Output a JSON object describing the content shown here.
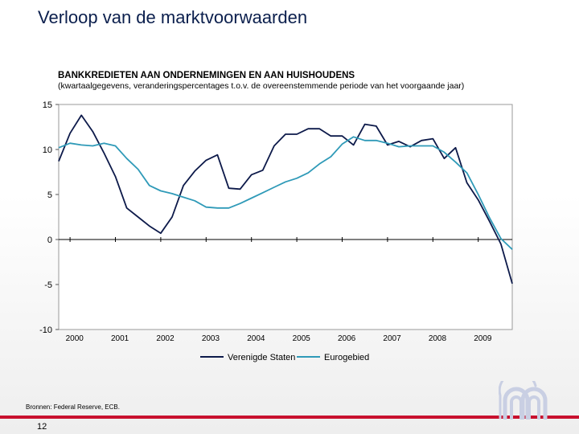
{
  "slide": {
    "title": "Verloop van de marktvoorwaarden",
    "source": "Bronnen: Federal Reserve, ECB.",
    "page_number": "12"
  },
  "colors": {
    "us": "#0d1a4a",
    "euro": "#2f9ab8",
    "accent": "#c8102e",
    "title": "#0b1f4d",
    "logo": "#c9cfe3"
  },
  "chart_data": {
    "type": "line",
    "title": "BANKKREDIETEN AAN ONDERNEMINGEN EN AAN HUISHOUDENS",
    "subtitle": "(kwartaalgegevens, veranderingspercentages t.o.v. de overeenstemmende periode van het voorgaande jaar)",
    "ylim": [
      -10,
      15
    ],
    "yticks": [
      15,
      10,
      5,
      0,
      -5,
      -10
    ],
    "xlim": [
      1999.75,
      2009.75
    ],
    "xticks": [
      {
        "label": "2000",
        "pos": 2000.1
      },
      {
        "label": "2001",
        "pos": 2001.1
      },
      {
        "label": "2002",
        "pos": 2002.1
      },
      {
        "label": "2003",
        "pos": 2003.1
      },
      {
        "label": "2004",
        "pos": 2004.1
      },
      {
        "label": "2005",
        "pos": 2005.1
      },
      {
        "label": "2006",
        "pos": 2006.1
      },
      {
        "label": "2007",
        "pos": 2007.1
      },
      {
        "label": "2008",
        "pos": 2008.1
      },
      {
        "label": "2009",
        "pos": 2009.1
      }
    ],
    "x": [
      1999.75,
      2000.0,
      2000.25,
      2000.5,
      2000.75,
      2001.0,
      2001.25,
      2001.5,
      2001.75,
      2002.0,
      2002.25,
      2002.5,
      2002.75,
      2003.0,
      2003.25,
      2003.5,
      2003.75,
      2004.0,
      2004.25,
      2004.5,
      2004.75,
      2005.0,
      2005.25,
      2005.5,
      2005.75,
      2006.0,
      2006.25,
      2006.5,
      2006.75,
      2007.0,
      2007.25,
      2007.5,
      2007.75,
      2008.0,
      2008.25,
      2008.5,
      2008.75,
      2009.0,
      2009.25,
      2009.5,
      2009.75
    ],
    "series": [
      {
        "name": "Verenigde Staten",
        "color": "#0d1a4a",
        "values": [
          8.7,
          11.8,
          13.8,
          12.0,
          9.6,
          7.0,
          3.5,
          2.5,
          1.5,
          0.7,
          2.5,
          6.0,
          7.6,
          8.8,
          9.4,
          5.7,
          5.6,
          7.2,
          7.7,
          10.4,
          11.7,
          11.7,
          12.3,
          12.3,
          11.5,
          11.5,
          10.5,
          12.8,
          12.6,
          10.5,
          10.9,
          10.3,
          11.0,
          11.2,
          9.0,
          10.2,
          6.3,
          4.4,
          2.0,
          -0.5,
          -4.9
        ]
      },
      {
        "name": "Eurogebied",
        "color": "#2f9ab8",
        "values": [
          10.2,
          10.7,
          10.5,
          10.4,
          10.7,
          10.4,
          9.0,
          7.8,
          6.0,
          5.4,
          5.1,
          4.7,
          4.3,
          3.6,
          3.5,
          3.5,
          4.0,
          4.6,
          5.2,
          5.8,
          6.4,
          6.8,
          7.4,
          8.4,
          9.2,
          10.6,
          11.4,
          11.0,
          11.0,
          10.7,
          10.3,
          10.4,
          10.4,
          10.4,
          9.7,
          8.6,
          7.4,
          5.0,
          2.4,
          0.1,
          -1.1
        ]
      }
    ]
  }
}
